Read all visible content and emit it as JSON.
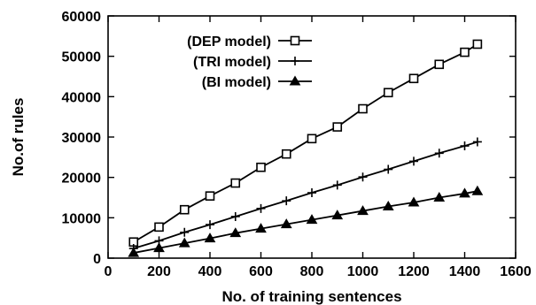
{
  "chart_data": {
    "type": "line",
    "title": "",
    "xlabel": "No. of training sentences",
    "ylabel": "No.of rules",
    "xlim": [
      0,
      1600
    ],
    "ylim": [
      0,
      60000
    ],
    "xticks": [
      "0",
      "200",
      "400",
      "600",
      "800",
      "1000",
      "1200",
      "1400",
      "1600"
    ],
    "yticks": [
      "0",
      "10000",
      "20000",
      "30000",
      "40000",
      "50000",
      "60000"
    ],
    "grid": false,
    "legend_position": "top-left",
    "x": [
      100,
      200,
      300,
      400,
      500,
      600,
      700,
      800,
      900,
      1000,
      1100,
      1200,
      1300,
      1400,
      1450
    ],
    "series": [
      {
        "name": "(DEP model)",
        "marker": "open-square",
        "values": [
          4000,
          7700,
          12000,
          15400,
          18600,
          22500,
          25800,
          29600,
          32500,
          37000,
          41000,
          44500,
          48000,
          51000,
          53000
        ]
      },
      {
        "name": "(TRI model)",
        "marker": "plus",
        "values": [
          2400,
          4300,
          6400,
          8300,
          10300,
          12300,
          14200,
          16200,
          18100,
          20100,
          22000,
          24000,
          26000,
          27800,
          28800
        ]
      },
      {
        "name": "(BI model)",
        "marker": "filled-triangle",
        "values": [
          1300,
          2500,
          3700,
          4900,
          6200,
          7300,
          8400,
          9500,
          10600,
          11700,
          12800,
          13800,
          15000,
          16000,
          16600
        ]
      }
    ]
  }
}
